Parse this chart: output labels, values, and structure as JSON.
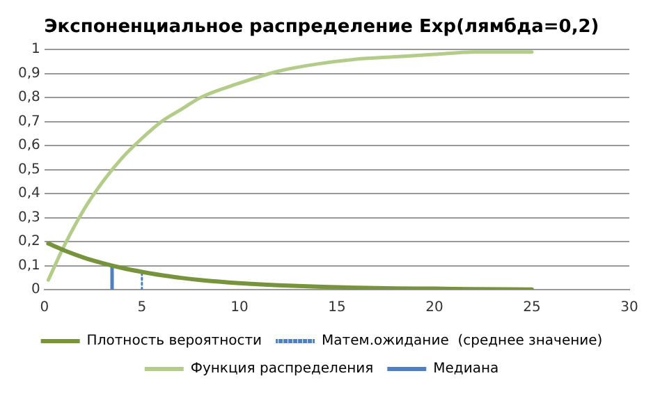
{
  "chart_data": {
    "type": "line",
    "title": "Экспоненциальное распределение Exp(лямбда=0,2)",
    "series": [
      {
        "name": "Плотность вероятности",
        "color": "#77933c",
        "line_style": "solid",
        "x": [
          0.2,
          1,
          2,
          3,
          4,
          5,
          6,
          7,
          8,
          10,
          12,
          14,
          16,
          18,
          20,
          22,
          25
        ],
        "values": [
          0.192,
          0.164,
          0.134,
          0.11,
          0.09,
          0.074,
          0.06,
          0.049,
          0.04,
          0.027,
          0.018,
          0.012,
          0.008,
          0.005,
          0.004,
          0.002,
          0.001
        ]
      },
      {
        "name": "Матем.ожидание  (среднее значение)",
        "color": "#4f81bd",
        "line_style": "dotted",
        "x": [
          5,
          5
        ],
        "values": [
          0,
          0.074
        ]
      },
      {
        "name": "Функция распределения",
        "color": "#b3cc8a",
        "line_style": "solid",
        "x": [
          0.2,
          1,
          2,
          3,
          4,
          5,
          6,
          7,
          8,
          10,
          12,
          14,
          16,
          18,
          20,
          22,
          25
        ],
        "values": [
          0.04,
          0.18,
          0.33,
          0.45,
          0.55,
          0.63,
          0.7,
          0.75,
          0.8,
          0.86,
          0.91,
          0.94,
          0.96,
          0.97,
          0.98,
          0.99,
          0.99
        ]
      },
      {
        "name": "Медиана",
        "color": "#4f81bd",
        "line_style": "solid",
        "x": [
          3.47,
          3.47
        ],
        "values": [
          0,
          0.1
        ]
      }
    ],
    "xlim": [
      0,
      30
    ],
    "xticks": [
      0,
      5,
      10,
      15,
      20,
      25,
      30
    ],
    "ylim": [
      0,
      1
    ],
    "yticks": [
      0,
      {
        "value": 0.1,
        "label": "0,1"
      },
      {
        "value": 0.2,
        "label": "0,2"
      },
      {
        "value": 0.3,
        "label": "0,3"
      },
      {
        "value": 0.4,
        "label": "0,4"
      },
      {
        "value": 0.5,
        "label": "0,5"
      },
      {
        "value": 0.6,
        "label": "0,6"
      },
      {
        "value": 0.7,
        "label": "0,7"
      },
      {
        "value": 0.8,
        "label": "0,8"
      },
      {
        "value": 0.9,
        "label": "0,9"
      },
      1
    ],
    "grid": "y",
    "legend": "bottom",
    "marker": "none"
  }
}
